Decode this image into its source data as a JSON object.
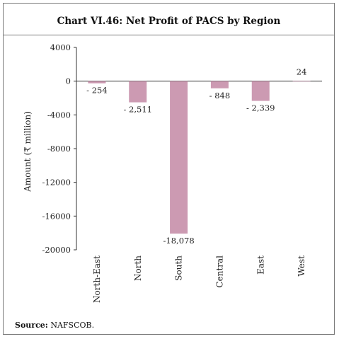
{
  "chart_data": {
    "type": "bar",
    "title": "Chart VI.46: Net Profit of PACS by Region",
    "ylabel": "Amount (₹ million)",
    "xlabel": "",
    "categories": [
      "North-East",
      "North",
      "South",
      "Central",
      "East",
      "West"
    ],
    "values": [
      -254,
      -2511,
      -18078,
      -848,
      -2339,
      24
    ],
    "data_labels": [
      "- 254",
      "- 2,511",
      "-18,078",
      "- 848",
      "- 2,339",
      "24"
    ],
    "ylim": [
      -20000,
      4000
    ],
    "yticks": [
      4000,
      0,
      -4000,
      -8000,
      -12000,
      -16000,
      -20000
    ],
    "ytick_labels": [
      "4000",
      "0",
      "-4000",
      "-8000",
      "-12000",
      "-16000",
      "-20000"
    ],
    "grid": false,
    "bar_color": "#cc9ab2"
  },
  "source": {
    "label": "Source:",
    "text": "NAFSCOB."
  }
}
